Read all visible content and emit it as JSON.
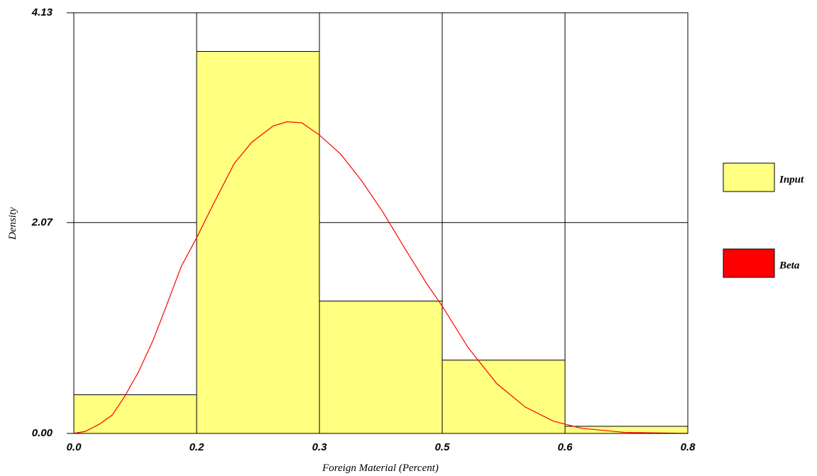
{
  "chart_data": {
    "type": "histogram",
    "x_label": "Foreign Material (Percent)",
    "y_label": "Density",
    "bins": [
      0,
      0.16,
      0.32,
      0.48,
      0.64,
      0.8
    ],
    "xlim": [
      0,
      0.8
    ],
    "xticks": [
      {
        "value": 0,
        "label": "0.0"
      },
      {
        "value": 0.16,
        "label": "0.2"
      },
      {
        "value": 0.32,
        "label": "0.3"
      },
      {
        "value": 0.48,
        "label": "0.5"
      },
      {
        "value": 0.64,
        "label": "0.6"
      },
      0.8
    ],
    "ylim": [
      0,
      4.13
    ],
    "yticks": [
      {
        "value": 0,
        "label": "0.00"
      },
      2.07,
      4.13
    ],
    "grid": true,
    "series": [
      {
        "name": "Input",
        "type": "histogram",
        "color": "#ffff80",
        "values": [
          0.38,
          3.75,
          1.3,
          0.72,
          0.07
        ]
      },
      {
        "name": "Beta",
        "type": "line",
        "color": "#ff0000",
        "x": [
          0,
          0.015,
          0.033,
          0.05,
          0.066,
          0.084,
          0.103,
          0.121,
          0.14,
          0.16,
          0.181,
          0.209,
          0.232,
          0.26,
          0.278,
          0.297,
          0.32,
          0.348,
          0.375,
          0.403,
          0.431,
          0.459,
          0.48,
          0.514,
          0.551,
          0.588,
          0.625,
          0.662,
          0.718,
          0.8
        ],
        "values": [
          0,
          0.02,
          0.09,
          0.18,
          0.36,
          0.6,
          0.91,
          1.26,
          1.64,
          1.92,
          2.24,
          2.65,
          2.86,
          3.02,
          3.06,
          3.05,
          2.93,
          2.74,
          2.48,
          2.17,
          1.82,
          1.48,
          1.25,
          0.84,
          0.49,
          0.26,
          0.12,
          0.05,
          0.01,
          0
        ]
      }
    ]
  }
}
